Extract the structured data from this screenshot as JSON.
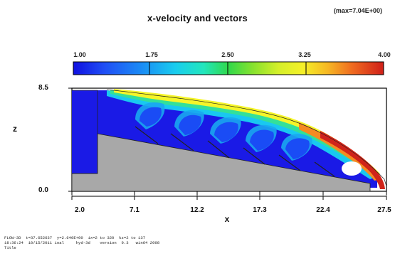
{
  "title": "x-velocity and vectors",
  "max_label": "(max=7.04E+00)",
  "colorbar": {
    "ticks": [
      "1.00",
      "1.75",
      "2.50",
      "3.25",
      "4.00"
    ],
    "colors": [
      "#1a1ae6",
      "#1a4cf5",
      "#1a8cf5",
      "#19c8f0",
      "#22e6c8",
      "#33e09a",
      "#35d34a",
      "#7fe030",
      "#c8ee2a",
      "#f5f529",
      "#f7c826",
      "#f58a22",
      "#e94b1e",
      "#d0241a"
    ]
  },
  "axes": {
    "z_label": "z",
    "x_label": "x",
    "y_ticks": [
      "8.5",
      "0.0"
    ],
    "x_ticks": [
      "2.0",
      "7.1",
      "12.2",
      "17.3",
      "22.4",
      "27.5"
    ]
  },
  "footer": {
    "line1": "FLOW-3D  t=37.652637  y=2.640E+00  ix=2 to 320  kz=2 to 137",
    "line2": "18:36:24  10/15/2011 ioal     hyd-3d    version  9.3   win64 2008",
    "line3": "Title"
  }
}
